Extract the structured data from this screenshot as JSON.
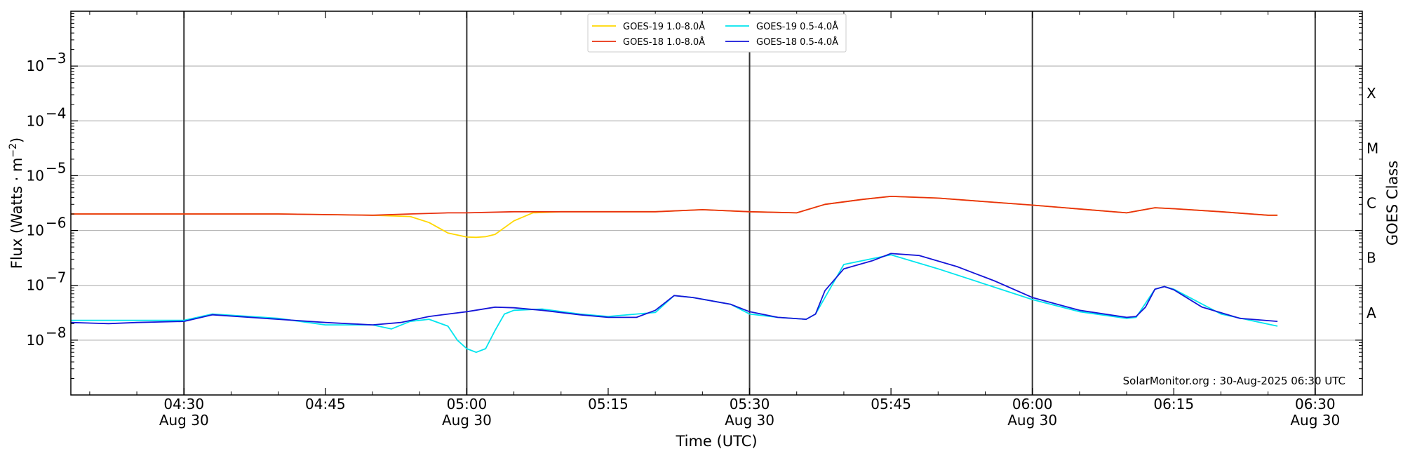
{
  "chart_data": {
    "type": "line",
    "xlabel": "Time (UTC)",
    "ylabel": "Flux (Watts · m⁻²)",
    "ylabel_right": "GOES Class",
    "credit": "SolarMonitor.org : 30-Aug-2025 06:30 UTC",
    "x_range": [
      "2025-08-30 04:18",
      "2025-08-30 06:35"
    ],
    "y_range": [
      1e-09,
      0.01
    ],
    "y_scale": "log",
    "grid": "horizontal at each decade",
    "legend_position": "top-center",
    "x_ticks": [
      {
        "time": "04:30",
        "date": "Aug 30"
      },
      {
        "time": "04:45",
        "date": ""
      },
      {
        "time": "05:00",
        "date": "Aug 30"
      },
      {
        "time": "05:15",
        "date": ""
      },
      {
        "time": "05:30",
        "date": "Aug 30"
      },
      {
        "time": "05:45",
        "date": ""
      },
      {
        "time": "06:00",
        "date": "Aug 30"
      },
      {
        "time": "06:15",
        "date": ""
      },
      {
        "time": "06:30",
        "date": "Aug 30"
      }
    ],
    "half_hour_lines": [
      "04:30",
      "05:00",
      "05:30",
      "06:00",
      "06:30"
    ],
    "y_ticks": [
      {
        "value": 1e-08,
        "label": "10",
        "exp": "−8"
      },
      {
        "value": 1e-07,
        "label": "10",
        "exp": "−7"
      },
      {
        "value": 1e-06,
        "label": "10",
        "exp": "−6"
      },
      {
        "value": 1e-05,
        "label": "10",
        "exp": "−5"
      },
      {
        "value": 0.0001,
        "label": "10",
        "exp": "−4"
      },
      {
        "value": 0.001,
        "label": "10",
        "exp": "−3"
      }
    ],
    "goes_classes": [
      {
        "label": "A",
        "value": 3.16e-08
      },
      {
        "label": "B",
        "value": 3.16e-07
      },
      {
        "label": "C",
        "value": 3.16e-06
      },
      {
        "label": "M",
        "value": 3.16e-05
      },
      {
        "label": "X",
        "value": 0.000316
      }
    ],
    "series": [
      {
        "name": "GOES-19 1.0-8.0Å",
        "color": "#ffd700",
        "x": [
          "04:18",
          "04:25",
          "04:30",
          "04:40",
          "04:50",
          "04:54",
          "04:56",
          "04:58",
          "05:00",
          "05:01",
          "05:02",
          "05:03",
          "05:05",
          "05:07",
          "05:10",
          "05:20",
          "05:25",
          "05:30",
          "05:35",
          "05:38",
          "05:42",
          "05:45",
          "05:50",
          "06:00",
          "06:10",
          "06:13",
          "06:15",
          "06:20",
          "06:25",
          "06:26"
        ],
        "values": [
          2e-06,
          2e-06,
          2e-06,
          2e-06,
          1.9e-06,
          1.8e-06,
          1.4e-06,
          9e-07,
          7.6e-07,
          7.5e-07,
          7.7e-07,
          8.5e-07,
          1.5e-06,
          2.1e-06,
          2.2e-06,
          2.2e-06,
          2.4e-06,
          2.2e-06,
          2.1e-06,
          3e-06,
          3.7e-06,
          4.2e-06,
          3.9e-06,
          2.9e-06,
          2.1e-06,
          2.6e-06,
          2.5e-06,
          2.2e-06,
          1.9e-06,
          1.9e-06
        ]
      },
      {
        "name": "GOES-18 1.0-8.0Å",
        "color": "#e8300f",
        "x": [
          "04:18",
          "04:25",
          "04:30",
          "04:40",
          "04:50",
          "04:54",
          "04:58",
          "05:00",
          "05:05",
          "05:10",
          "05:20",
          "05:25",
          "05:30",
          "05:35",
          "05:38",
          "05:42",
          "05:45",
          "05:50",
          "06:00",
          "06:10",
          "06:13",
          "06:15",
          "06:20",
          "06:25",
          "06:26"
        ],
        "values": [
          2e-06,
          2e-06,
          2e-06,
          2e-06,
          1.9e-06,
          2e-06,
          2.1e-06,
          2.1e-06,
          2.2e-06,
          2.2e-06,
          2.2e-06,
          2.4e-06,
          2.2e-06,
          2.1e-06,
          3e-06,
          3.7e-06,
          4.2e-06,
          3.9e-06,
          2.9e-06,
          2.1e-06,
          2.6e-06,
          2.5e-06,
          2.2e-06,
          1.9e-06,
          1.9e-06
        ]
      },
      {
        "name": "GOES-19 0.5-4.0Å",
        "color": "#00e5ee",
        "x": [
          "04:18",
          "04:25",
          "04:30",
          "04:33",
          "04:40",
          "04:45",
          "04:50",
          "04:52",
          "04:54",
          "04:56",
          "04:58",
          "04:59",
          "05:00",
          "05:01",
          "05:02",
          "05:03",
          "05:04",
          "05:05",
          "05:08",
          "05:12",
          "05:15",
          "05:20",
          "05:22",
          "05:24",
          "05:28",
          "05:30",
          "05:33",
          "05:36",
          "05:37",
          "05:40",
          "05:45",
          "05:50",
          "06:00",
          "06:05",
          "06:10",
          "06:11",
          "06:13",
          "06:14",
          "06:15",
          "06:20",
          "06:26"
        ],
        "values": [
          2.3e-08,
          2.3e-08,
          2.3e-08,
          3e-08,
          2.5e-08,
          1.9e-08,
          1.9e-08,
          1.6e-08,
          2.2e-08,
          2.4e-08,
          1.8e-08,
          1e-08,
          7e-09,
          6e-09,
          7e-09,
          1.5e-08,
          3e-08,
          3.5e-08,
          3.7e-08,
          3e-08,
          2.7e-08,
          3.2e-08,
          6.5e-08,
          6e-08,
          4.5e-08,
          3e-08,
          2.6e-08,
          2.4e-08,
          3e-08,
          2.4e-07,
          3.6e-07,
          2e-07,
          5.5e-08,
          3.3e-08,
          2.5e-08,
          2.6e-08,
          8.5e-08,
          9.5e-08,
          8.5e-08,
          3e-08,
          1.8e-08
        ]
      },
      {
        "name": "GOES-18 0.5-4.0Å",
        "color": "#1515d8",
        "x": [
          "04:18",
          "04:22",
          "04:25",
          "04:30",
          "04:33",
          "04:40",
          "04:45",
          "04:50",
          "04:53",
          "04:56",
          "05:00",
          "05:03",
          "05:05",
          "05:08",
          "05:12",
          "05:15",
          "05:18",
          "05:20",
          "05:22",
          "05:24",
          "05:28",
          "05:30",
          "05:33",
          "05:36",
          "05:37",
          "05:38",
          "05:40",
          "05:43",
          "05:45",
          "05:48",
          "05:52",
          "05:56",
          "06:00",
          "06:05",
          "06:10",
          "06:11",
          "06:12",
          "06:13",
          "06:14",
          "06:15",
          "06:18",
          "06:22",
          "06:26"
        ],
        "values": [
          2.1e-08,
          2e-08,
          2.1e-08,
          2.2e-08,
          2.9e-08,
          2.4e-08,
          2.1e-08,
          1.9e-08,
          2.1e-08,
          2.7e-08,
          3.3e-08,
          4e-08,
          3.9e-08,
          3.5e-08,
          2.9e-08,
          2.6e-08,
          2.6e-08,
          3.5e-08,
          6.5e-08,
          6e-08,
          4.5e-08,
          3.3e-08,
          2.6e-08,
          2.4e-08,
          3e-08,
          8e-08,
          2e-07,
          2.8e-07,
          3.8e-07,
          3.5e-07,
          2.2e-07,
          1.2e-07,
          6e-08,
          3.5e-08,
          2.6e-08,
          2.7e-08,
          4e-08,
          8.5e-08,
          9.5e-08,
          8.3e-08,
          4e-08,
          2.5e-08,
          2.2e-08
        ]
      }
    ]
  }
}
